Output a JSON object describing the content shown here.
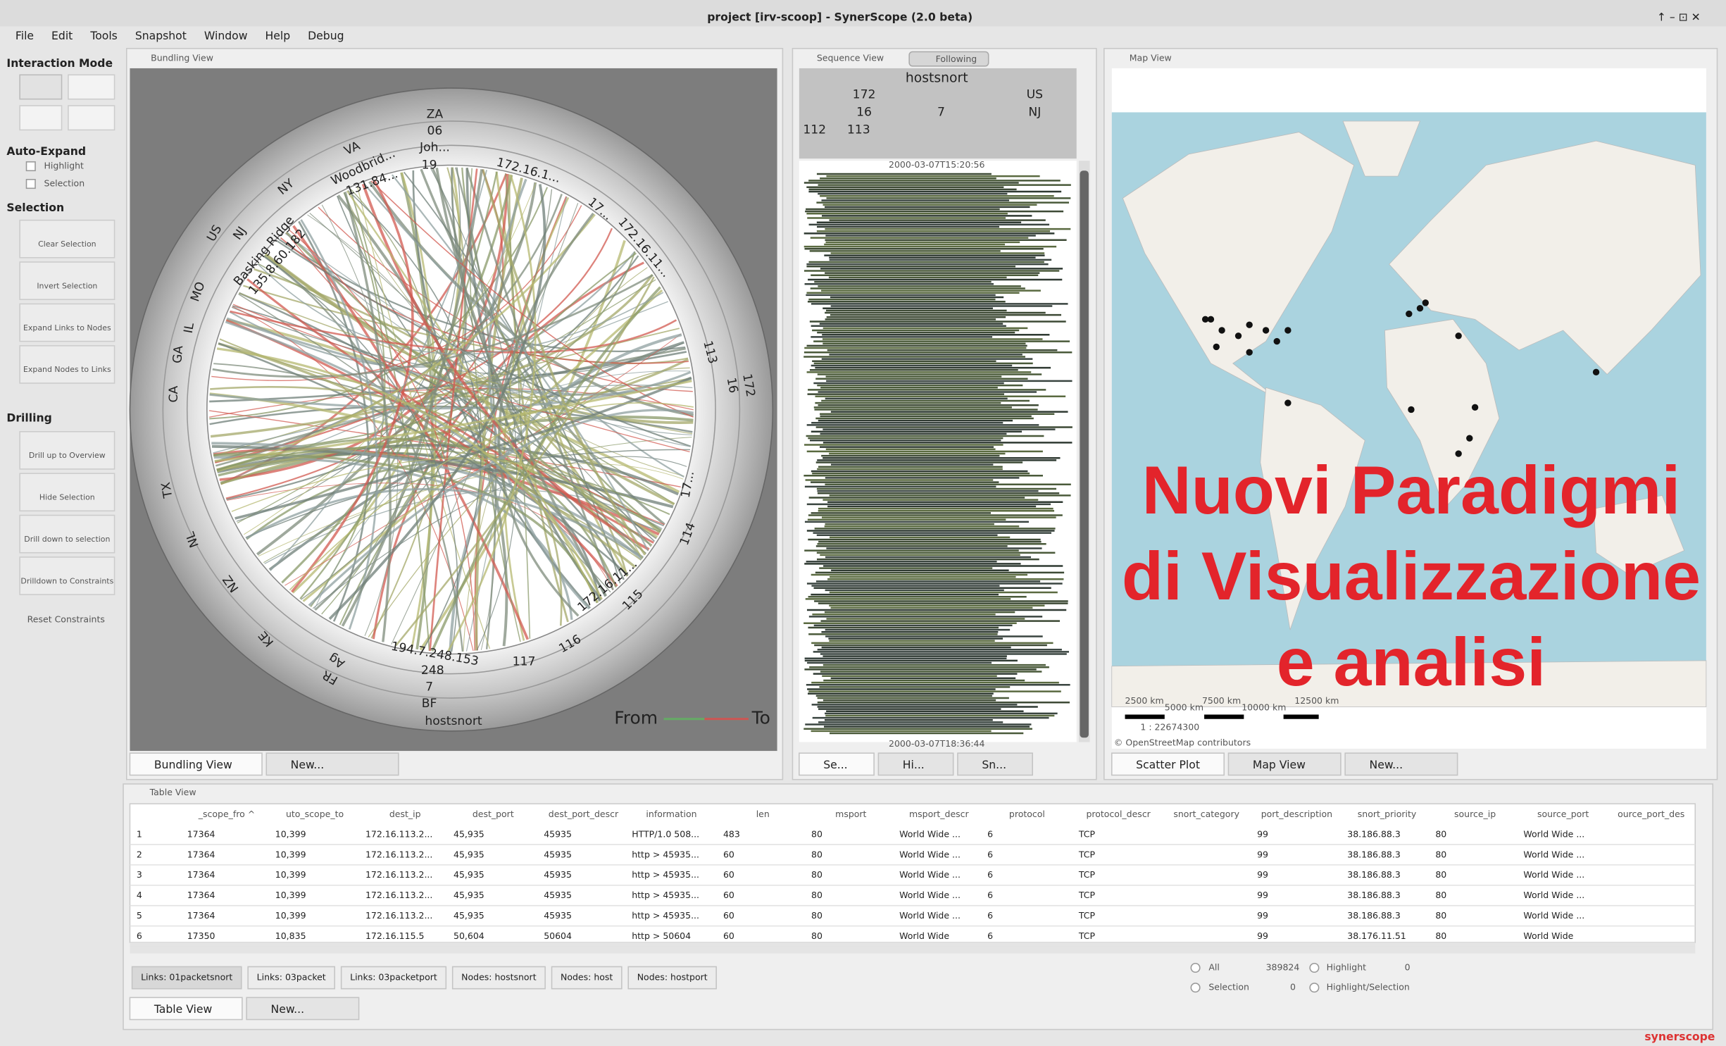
{
  "window": {
    "title": "project [irv-scoop] - SynerScope (2.0 beta)",
    "menu": [
      "File",
      "Edit",
      "Tools",
      "Snapshot",
      "Window",
      "Help",
      "Debug"
    ],
    "footer_brand": "synerscope"
  },
  "sidebar": {
    "interaction_mode": "Interaction Mode",
    "auto_expand": "Auto-Expand",
    "auto_expand_options": [
      "Highlight",
      "Selection"
    ],
    "selection": "Selection",
    "selection_buttons": [
      "Clear Selection",
      "Invert Selection",
      "Expand Links to Nodes",
      "Expand Nodes to Links"
    ],
    "drilling": "Drilling",
    "drilling_buttons": [
      "Drill up to Overview",
      "Hide Selection",
      "Drill down to selection",
      "Drilldown to Constraints"
    ],
    "reset": "Reset Constraints"
  },
  "bundling_view": {
    "title": "Bundling View",
    "ring_labels": [
      "ZA",
      "06",
      "Joh...",
      "19",
      "VA",
      "Woodbrid...",
      "131.84...",
      "NY",
      "NJ",
      "US",
      "Basking Ridge",
      "135.8.60.182",
      "MO",
      "IL",
      "GA",
      "CA",
      "TX",
      "NL",
      "NZ",
      "KE",
      "FR",
      "Ag",
      "194.7.248.153",
      "248",
      "7",
      "BF",
      "hostsnort",
      "117",
      "116",
      "115",
      "172.16.11...",
      "114",
      "17...",
      "172",
      "16",
      "113",
      "172.16.1...",
      "172.16.11...",
      "17..."
    ],
    "legend_from": "From",
    "legend_to": "To",
    "tabs": [
      "Bundling View",
      "New..."
    ]
  },
  "sequence_view": {
    "title": "Sequence View",
    "following": "Following",
    "header": "hostsnort",
    "header_cells": [
      "172",
      "US",
      "16",
      "7",
      "NJ",
      "112",
      "113"
    ],
    "start_time": "2000-03-07T15:20:56",
    "end_time": "2000-03-07T18:36:44",
    "tabs": [
      "Se...",
      "Hi...",
      "Sn..."
    ]
  },
  "map_view": {
    "title": "Map View",
    "scale_labels": [
      "2500 km",
      "5000 km",
      "7500 km",
      "10000 km",
      "12500 km"
    ],
    "scale_ratio": "1 : 22674300",
    "attribution": "© OpenStreetMap contributors",
    "tabs": [
      "Scatter Plot",
      "Map View",
      "New..."
    ]
  },
  "overlay": [
    "Nuovi Paradigmi",
    "di Visualizzazione",
    "e analisi"
  ],
  "table": {
    "title": "Table View",
    "headers": [
      "_scope_fro ^",
      "uto_scope_to",
      "dest_ip",
      "dest_port",
      "dest_port_descr",
      "information",
      "len",
      "msport",
      "msport_descr",
      "protocol",
      "protocol_descr",
      "snort_category",
      "port_description",
      "snort_priority",
      "source_ip",
      "source_port",
      "ource_port_des"
    ],
    "rows": [
      [
        "1",
        "17364",
        "10,399",
        "172.16.113.2...",
        "45,935",
        "45935",
        "HTTP/1.0 508...",
        "483",
        "80",
        "World Wide ...",
        "6",
        "TCP",
        null,
        "99",
        "38.186.88.3",
        "80",
        "World Wide ..."
      ],
      [
        "2",
        "17364",
        "10,399",
        "172.16.113.2...",
        "45,935",
        "45935",
        "http > 45935...",
        "60",
        "80",
        "World Wide ...",
        "6",
        "TCP",
        null,
        "99",
        "38.186.88.3",
        "80",
        "World Wide ..."
      ],
      [
        "3",
        "17364",
        "10,399",
        "172.16.113.2...",
        "45,935",
        "45935",
        "http > 45935...",
        "60",
        "80",
        "World Wide ...",
        "6",
        "TCP",
        null,
        "99",
        "38.186.88.3",
        "80",
        "World Wide ..."
      ],
      [
        "4",
        "17364",
        "10,399",
        "172.16.113.2...",
        "45,935",
        "45935",
        "http > 45935...",
        "60",
        "80",
        "World Wide ...",
        "6",
        "TCP",
        null,
        "99",
        "38.186.88.3",
        "80",
        "World Wide ..."
      ],
      [
        "5",
        "17364",
        "10,399",
        "172.16.113.2...",
        "45,935",
        "45935",
        "http > 45935...",
        "60",
        "80",
        "World Wide ...",
        "6",
        "TCP",
        null,
        "99",
        "38.186.88.3",
        "80",
        "World Wide ..."
      ],
      [
        "6",
        "17350",
        "10,835",
        "172.16.115.5",
        "50,604",
        "50604",
        "http > 50604",
        "60",
        "80",
        "World Wide",
        "6",
        "TCP",
        null,
        "99",
        "38.176.11.51",
        "80",
        "World Wide"
      ]
    ],
    "filters": [
      "Links: 01packetsnort",
      "Links: 03packet",
      "Links: 03packetport",
      "Nodes: hostsnort",
      "Nodes: host",
      "Nodes: hostport"
    ],
    "counters": {
      "all": "All",
      "all_count": "389824",
      "highlight": "Highlight",
      "highlight_count": "0",
      "selection": "Selection",
      "selection_count": "0",
      "highlight_selection": "Highlight/Selection"
    },
    "tabs": [
      "Table View",
      "New..."
    ]
  }
}
